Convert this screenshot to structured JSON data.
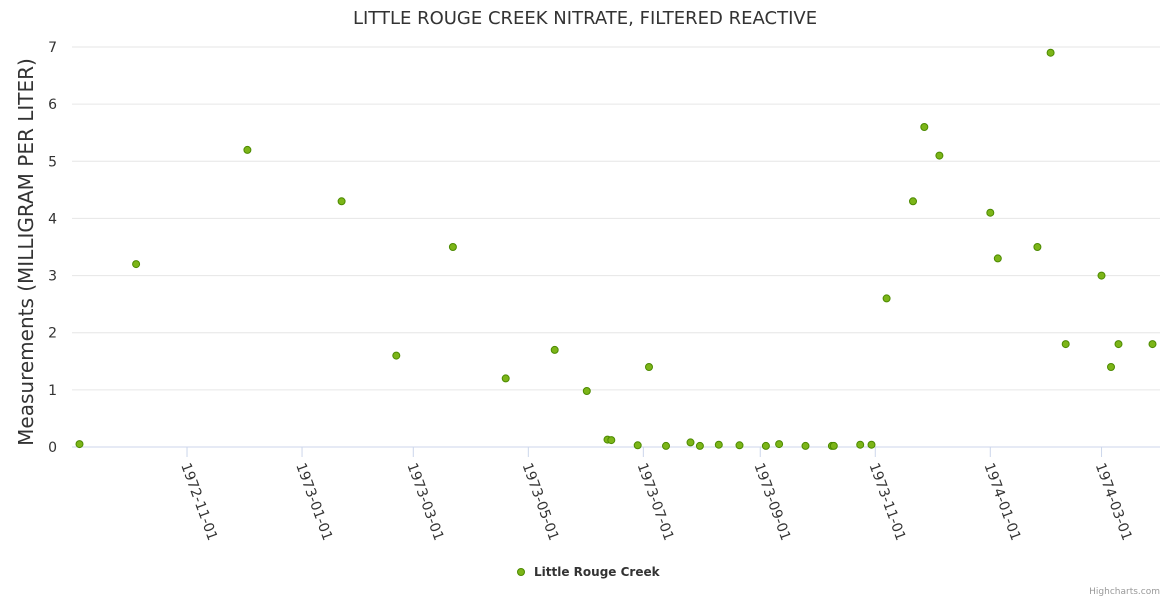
{
  "colors": {
    "marker_fill": "#7cb518",
    "marker_stroke": "#4c8a00",
    "title": "#333333",
    "credits": "#999999"
  },
  "credits": "Highcharts.com",
  "chart_data": {
    "type": "scatter",
    "title": "LITTLE ROUGE CREEK NITRATE, FILTERED REACTIVE",
    "xlabel": "",
    "ylabel": "Measurements (MILLIGRAM PER LITER)",
    "ylim": [
      0,
      7
    ],
    "yticks": [
      0,
      1,
      2,
      3,
      4,
      5,
      6,
      7
    ],
    "xlim": [
      "1972-09-01",
      "1974-04-01"
    ],
    "xticks": [
      "1972-11-01",
      "1973-01-01",
      "1973-03-01",
      "1973-05-01",
      "1973-07-01",
      "1973-09-01",
      "1973-11-01",
      "1974-01-01",
      "1974-03-01"
    ],
    "legend": "bottom-center",
    "series": [
      {
        "name": "Little Rouge Creek",
        "points": [
          [
            "1972-09-05",
            0.05
          ],
          [
            "1972-10-05",
            3.2
          ],
          [
            "1972-12-03",
            5.2
          ],
          [
            "1973-01-22",
            4.3
          ],
          [
            "1973-02-20",
            1.6
          ],
          [
            "1973-03-22",
            3.5
          ],
          [
            "1973-04-19",
            1.2
          ],
          [
            "1973-05-15",
            1.7
          ],
          [
            "1973-06-01",
            0.98
          ],
          [
            "1973-06-12",
            0.13
          ],
          [
            "1973-06-14",
            0.12
          ],
          [
            "1973-06-28",
            0.03
          ],
          [
            "1973-07-04",
            1.4
          ],
          [
            "1973-07-13",
            0.02
          ],
          [
            "1973-07-26",
            0.08
          ],
          [
            "1973-07-31",
            0.02
          ],
          [
            "1973-08-10",
            0.04
          ],
          [
            "1973-08-21",
            0.03
          ],
          [
            "1973-09-04",
            0.02
          ],
          [
            "1973-09-11",
            0.05
          ],
          [
            "1973-09-25",
            0.02
          ],
          [
            "1973-10-09",
            0.02
          ],
          [
            "1973-10-10",
            0.02
          ],
          [
            "1973-10-24",
            0.04
          ],
          [
            "1973-10-30",
            0.04
          ],
          [
            "1973-11-07",
            2.6
          ],
          [
            "1973-11-21",
            4.3
          ],
          [
            "1973-11-27",
            5.6
          ],
          [
            "1973-12-05",
            5.1
          ],
          [
            "1974-01-01",
            4.1
          ],
          [
            "1974-01-05",
            3.3
          ],
          [
            "1974-01-26",
            3.5
          ],
          [
            "1974-02-02",
            6.9
          ],
          [
            "1974-02-10",
            1.8
          ],
          [
            "1974-03-01",
            3.0
          ],
          [
            "1974-03-06",
            1.4
          ],
          [
            "1974-03-10",
            1.8
          ],
          [
            "1974-03-28",
            1.8
          ]
        ]
      }
    ]
  }
}
